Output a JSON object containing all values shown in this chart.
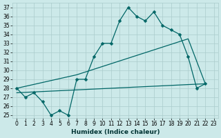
{
  "xlabel": "Humidex (Indice chaleur)",
  "background_color": "#cce9e9",
  "line_color": "#006666",
  "grid_color": "#aacccc",
  "xlim": [
    -0.5,
    23.5
  ],
  "ylim": [
    24.7,
    37.5
  ],
  "yticks": [
    25,
    26,
    27,
    28,
    29,
    30,
    31,
    32,
    33,
    34,
    35,
    36,
    37
  ],
  "xticks": [
    0,
    1,
    2,
    3,
    4,
    5,
    6,
    7,
    8,
    9,
    10,
    11,
    12,
    13,
    14,
    15,
    16,
    17,
    18,
    19,
    20,
    21,
    22,
    23
  ],
  "line_jagged": {
    "x": [
      0,
      1,
      2,
      3,
      4,
      5,
      6,
      7,
      8,
      9,
      10,
      11,
      12,
      13,
      14,
      15,
      16,
      17,
      18,
      19,
      20,
      21,
      22
    ],
    "y": [
      28,
      27,
      27.5,
      26.5,
      25,
      25.5,
      25,
      29,
      29,
      31.5,
      33,
      33,
      35.5,
      37,
      36,
      35.5,
      36.5,
      35,
      34.5,
      34,
      31.5,
      28,
      28.5
    ]
  },
  "line_upper": {
    "x": [
      0,
      7,
      20,
      22
    ],
    "y": [
      28,
      29.5,
      33.5,
      28.5
    ]
  },
  "line_lower": {
    "x": [
      0,
      22
    ],
    "y": [
      27.5,
      28.5
    ]
  }
}
